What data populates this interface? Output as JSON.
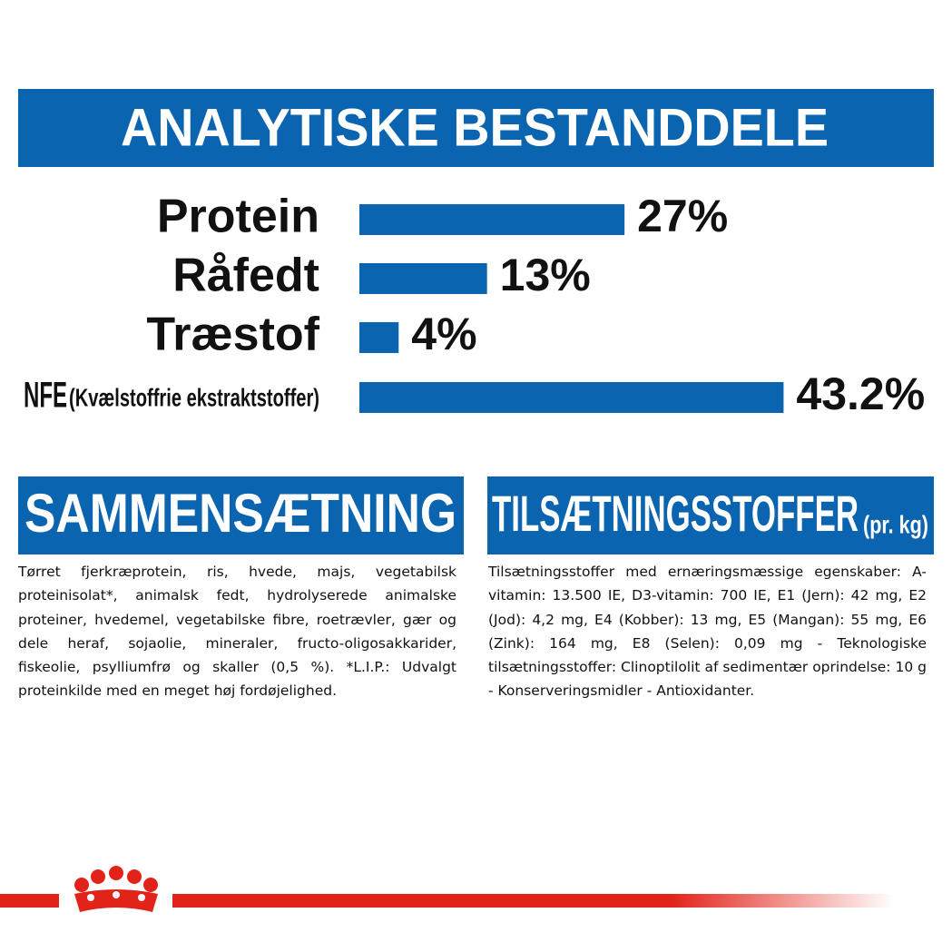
{
  "chart_data": {
    "type": "hbar",
    "title": "ANALYTISKE BESTANDDELE",
    "categories": [
      "Protein",
      "Råfedt",
      "Træstof",
      "NFE"
    ],
    "category_notes": [
      null,
      null,
      null,
      "(Kvælstoffrie ekstraktstoffer)"
    ],
    "values": [
      27,
      13,
      4,
      43.2
    ],
    "value_labels": [
      "27%",
      "13%",
      "4%",
      "43.2%"
    ],
    "color": "#0a64b0",
    "xlim": [
      0,
      50
    ]
  },
  "composition": {
    "title": "SAMMENSÆTNING",
    "text": "Tørret fjerkræprotein, ris, hvede, majs, vegetabilsk proteinisolat*, animalsk fedt, hydrolyserede animalske proteiner, hvedemel, vegetabilske fibre, roetrævler, gær og dele heraf, sojaolie, mineraler, fructo-oligosakkarider, fiskeolie, psylliumfrø og skaller (0,5 %). *L.I.P.: Udvalgt proteinkilde med en meget høj fordøjelighed."
  },
  "additives": {
    "title": "TILSÆTNINGSSTOFFER",
    "title_suffix": "(pr. kg)",
    "text": "Tilsætningsstoffer med ernæringsmæssige egenskaber: A-vitamin: 13.500 IE, D3-vitamin: 700 IE, E1 (Jern): 42 mg, E2 (Jod): 4,2 mg, E4 (Kobber): 13 mg, E5 (Mangan): 55 mg, E6 (Zink): 164 mg, E8 (Selen): 0,09 mg - Teknologiske tilsætningsstoffer: Clinoptilolit af sedimentær oprindelse: 10 g - Konserveringsmidler - Antioxidanter."
  }
}
